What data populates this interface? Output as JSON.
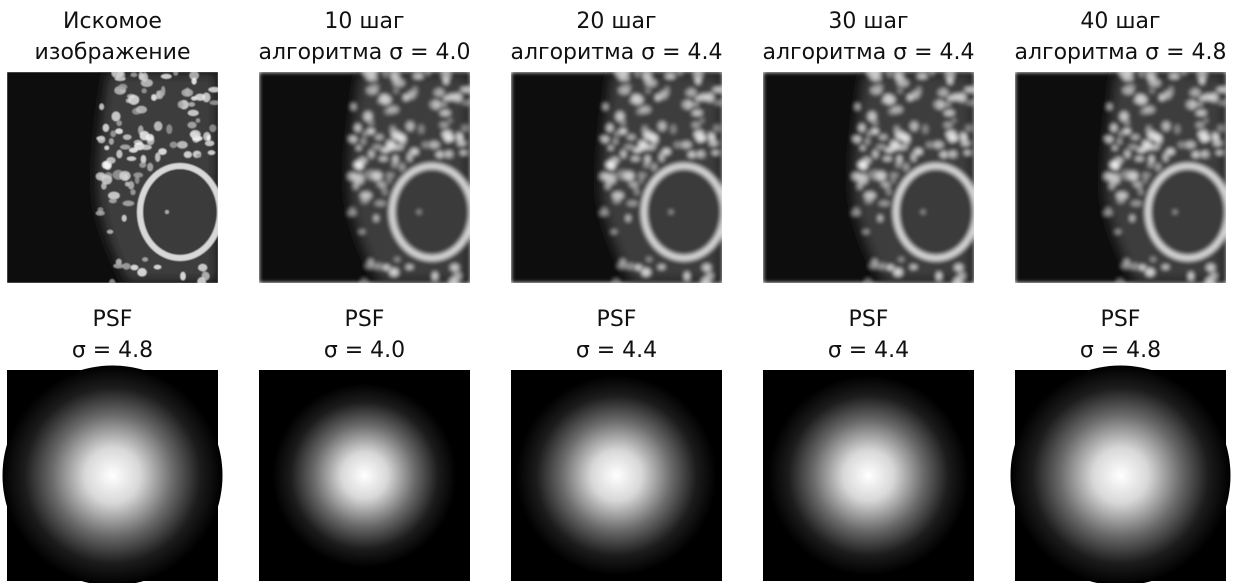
{
  "top_row": [
    {
      "title_lines": [
        "Искомое",
        "изображение"
      ]
    },
    {
      "title_lines": [
        "10 шаг",
        "алгоритма σ = 4.0"
      ]
    },
    {
      "title_lines": [
        "20 шаг",
        "алгоритма σ = 4.4"
      ]
    },
    {
      "title_lines": [
        "30 шаг",
        "алгоритма σ = 4.4"
      ]
    },
    {
      "title_lines": [
        "40 шаг",
        "алгоритма σ = 4.8"
      ]
    }
  ],
  "bottom_row": [
    {
      "title_lines": [
        "PSF",
        "σ = 4.8"
      ]
    },
    {
      "title_lines": [
        "PSF",
        "σ = 4.0"
      ]
    },
    {
      "title_lines": [
        "PSF",
        "σ = 4.4"
      ]
    },
    {
      "title_lines": [
        "PSF",
        "σ = 4.4"
      ]
    },
    {
      "title_lines": [
        "PSF",
        "σ = 4.8"
      ]
    }
  ]
}
